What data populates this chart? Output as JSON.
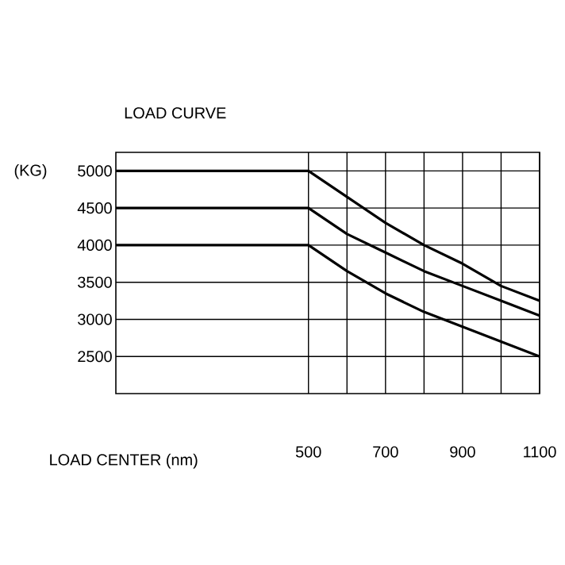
{
  "chart_data": {
    "type": "line",
    "title": "LOAD CURVE",
    "ylabel": "(KG)",
    "xlabel": "LOAD CENTER (nm)",
    "xlim": [
      0,
      1100
    ],
    "ylim": [
      2000,
      5250
    ],
    "xticks": [
      500,
      {
        "value": 600,
        "label": null
      },
      700,
      {
        "value": 800,
        "label": null
      },
      900,
      {
        "value": 1000,
        "label": null
      },
      1100
    ],
    "yticks": [
      2500,
      3000,
      3500,
      4000,
      4500,
      5000
    ],
    "grid": true,
    "marker": "none",
    "line_style": "solid",
    "series": [
      {
        "color": "#000000",
        "x": [
          0,
          500,
          600,
          700,
          800,
          900,
          1000,
          1100
        ],
        "values": [
          5000,
          5000,
          4650,
          4300,
          4000,
          3750,
          3450,
          3250
        ]
      },
      {
        "color": "#000000",
        "x": [
          0,
          500,
          600,
          700,
          800,
          900,
          1000,
          1100
        ],
        "values": [
          4500,
          4500,
          4150,
          3900,
          3650,
          3450,
          3250,
          3050
        ]
      },
      {
        "color": "#000000",
        "x": [
          0,
          500,
          600,
          700,
          800,
          900,
          1000,
          1100
        ],
        "values": [
          4000,
          4000,
          3650,
          3350,
          3100,
          2900,
          2700,
          2500
        ]
      }
    ]
  }
}
